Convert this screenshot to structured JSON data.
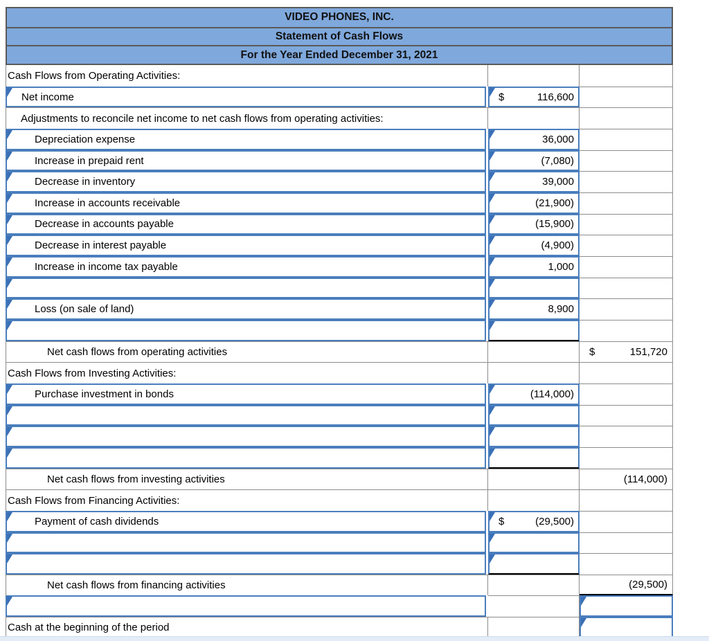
{
  "header": {
    "company": "VIDEO PHONES, INC.",
    "statement": "Statement of Cash Flows",
    "period": "For the Year Ended December 31, 2021"
  },
  "colors": {
    "header_fill": "#7FA8DC",
    "header_border": "#5A5A5A",
    "gridline": "#8C8C8C",
    "input_cell_border": "#4A7EBC",
    "input_flag": "#3A70B7",
    "sum_underline": "#000000",
    "bottom_row_highlight": "#E4ECF7"
  },
  "rows": [
    {
      "label": "Cash Flows from Operating Activities:",
      "indent": 0
    },
    {
      "label": "Net income",
      "indent": 1,
      "label_input": true,
      "col2_input": true,
      "col2_prefix": "$",
      "col2_value": "116,600"
    },
    {
      "label": "Adjustments to reconcile net income to net cash flows from operating activities:",
      "indent": 1
    },
    {
      "label": "Depreciation expense",
      "indent": 2,
      "label_input": true,
      "col2_input": true,
      "col2_value": "36,000"
    },
    {
      "label": "Increase in prepaid rent",
      "indent": 2,
      "label_input": true,
      "col2_input": true,
      "col2_value": "(7,080)"
    },
    {
      "label": "Decrease in inventory",
      "indent": 2,
      "label_input": true,
      "col2_input": true,
      "col2_value": "39,000"
    },
    {
      "label": "Increase in accounts receivable",
      "indent": 2,
      "label_input": true,
      "col2_input": true,
      "col2_value": "(21,900)"
    },
    {
      "label": "Decrease in accounts payable",
      "indent": 2,
      "label_input": true,
      "col2_input": true,
      "col2_value": "(15,900)"
    },
    {
      "label": "Decrease in interest payable",
      "indent": 2,
      "label_input": true,
      "col2_input": true,
      "col2_value": "(4,900)"
    },
    {
      "label": "Increase in income tax payable",
      "indent": 2,
      "label_input": true,
      "col2_input": true,
      "col2_value": "1,000"
    },
    {
      "label": "",
      "indent": 2,
      "label_input": true,
      "col2_input": true
    },
    {
      "label": "Loss (on sale of land)",
      "indent": 2,
      "label_input": true,
      "col2_input": true,
      "col2_value": "8,900"
    },
    {
      "label": "",
      "indent": 2,
      "label_input": true,
      "col2_input": true,
      "col2_sum": true
    },
    {
      "label": "Net cash flows from operating activities",
      "indent": 3,
      "col3_prefix": "$",
      "col3_value": "151,720"
    },
    {
      "label": "Cash Flows from Investing Activities:",
      "indent": 0
    },
    {
      "label": "Purchase investment in bonds",
      "indent": 2,
      "label_input": true,
      "col2_input": true,
      "col2_value": "(114,000)"
    },
    {
      "label": "",
      "indent": 2,
      "label_input": true,
      "col2_input": true
    },
    {
      "label": "",
      "indent": 2,
      "label_input": true,
      "col2_input": true
    },
    {
      "label": "",
      "indent": 2,
      "label_input": true,
      "col2_input": true,
      "col2_sum": true
    },
    {
      "label": "Net cash flows from investing activities",
      "indent": 3,
      "col3_value": "(114,000)"
    },
    {
      "label": "Cash Flows from Financing Activities:",
      "indent": 0
    },
    {
      "label": "Payment of cash dividends",
      "indent": 2,
      "label_input": true,
      "col2_input": true,
      "col2_prefix": "$",
      "col2_value": "(29,500)"
    },
    {
      "label": "",
      "indent": 2,
      "label_input": true,
      "col2_input": true
    },
    {
      "label": "",
      "indent": 2,
      "label_input": true,
      "col2_input": true,
      "col2_sum": true
    },
    {
      "label": "Net cash flows from financing activities",
      "indent": 3,
      "col3_value": "(29,500)",
      "col3_sum": true
    },
    {
      "label": "",
      "indent": 0,
      "label_input": true,
      "col3_input": true
    },
    {
      "label": "Cash at the beginning of the period",
      "indent": 0,
      "col3_input": true
    }
  ]
}
